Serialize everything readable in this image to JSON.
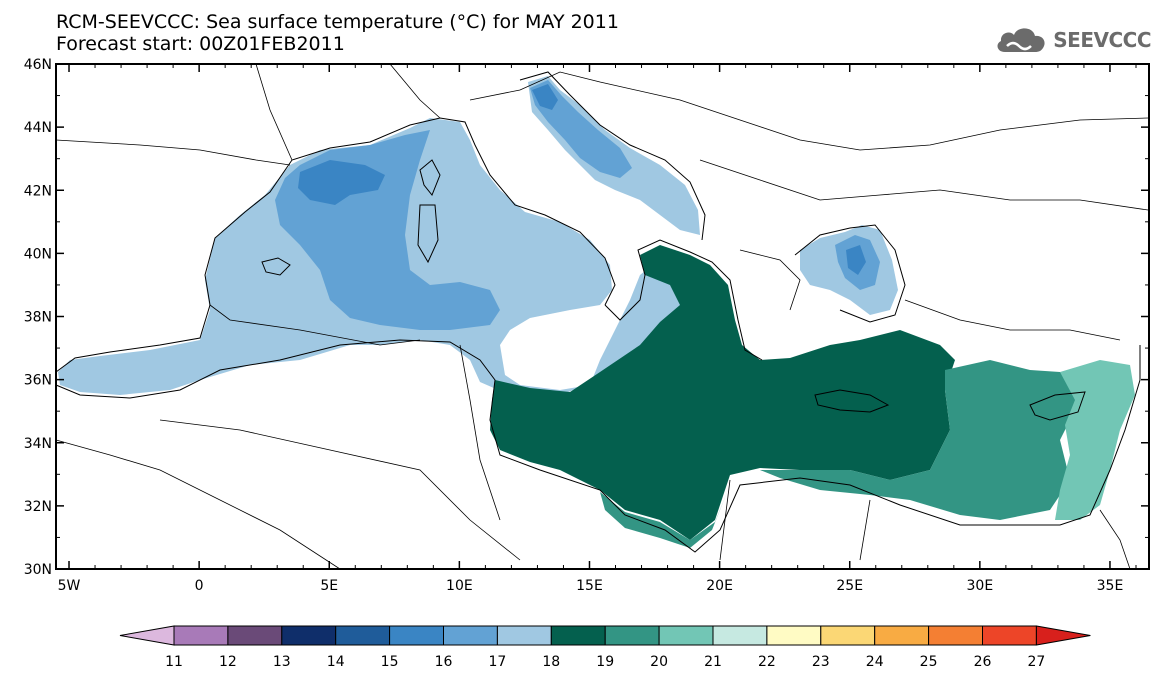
{
  "header": {
    "title_line1": "RCM-SEEVCCC: Sea surface temperature (°C) for MAY 2011",
    "title_line2": "Forecast start: 00Z01FEB2011",
    "logo_text": "SEEVCCC"
  },
  "map": {
    "lat_labels": [
      "46N",
      "44N",
      "42N",
      "40N",
      "38N",
      "36N",
      "34N",
      "32N",
      "30N"
    ],
    "lon_labels": [
      "5W",
      "0",
      "5E",
      "10E",
      "15E",
      "20E",
      "25E",
      "30E",
      "35E"
    ],
    "lat_range": [
      30,
      46
    ],
    "lon_range": [
      -5.5,
      36.5
    ]
  },
  "colorbar": {
    "labels": [
      "11",
      "12",
      "13",
      "14",
      "15",
      "16",
      "17",
      "18",
      "19",
      "20",
      "21",
      "22",
      "23",
      "24",
      "25",
      "26",
      "27"
    ],
    "colors": [
      "#dcb8de",
      "#a87ab8",
      "#6a4a78",
      "#0f2e6a",
      "#1f5c9a",
      "#3a85c4",
      "#62a2d4",
      "#a0c8e2",
      "#04604e",
      "#339584",
      "#72c6b5",
      "#c6e9e1",
      "#fffbc4",
      "#fbd775",
      "#f8ab43",
      "#f47f33",
      "#ed4528",
      "#d8201c"
    ]
  }
}
